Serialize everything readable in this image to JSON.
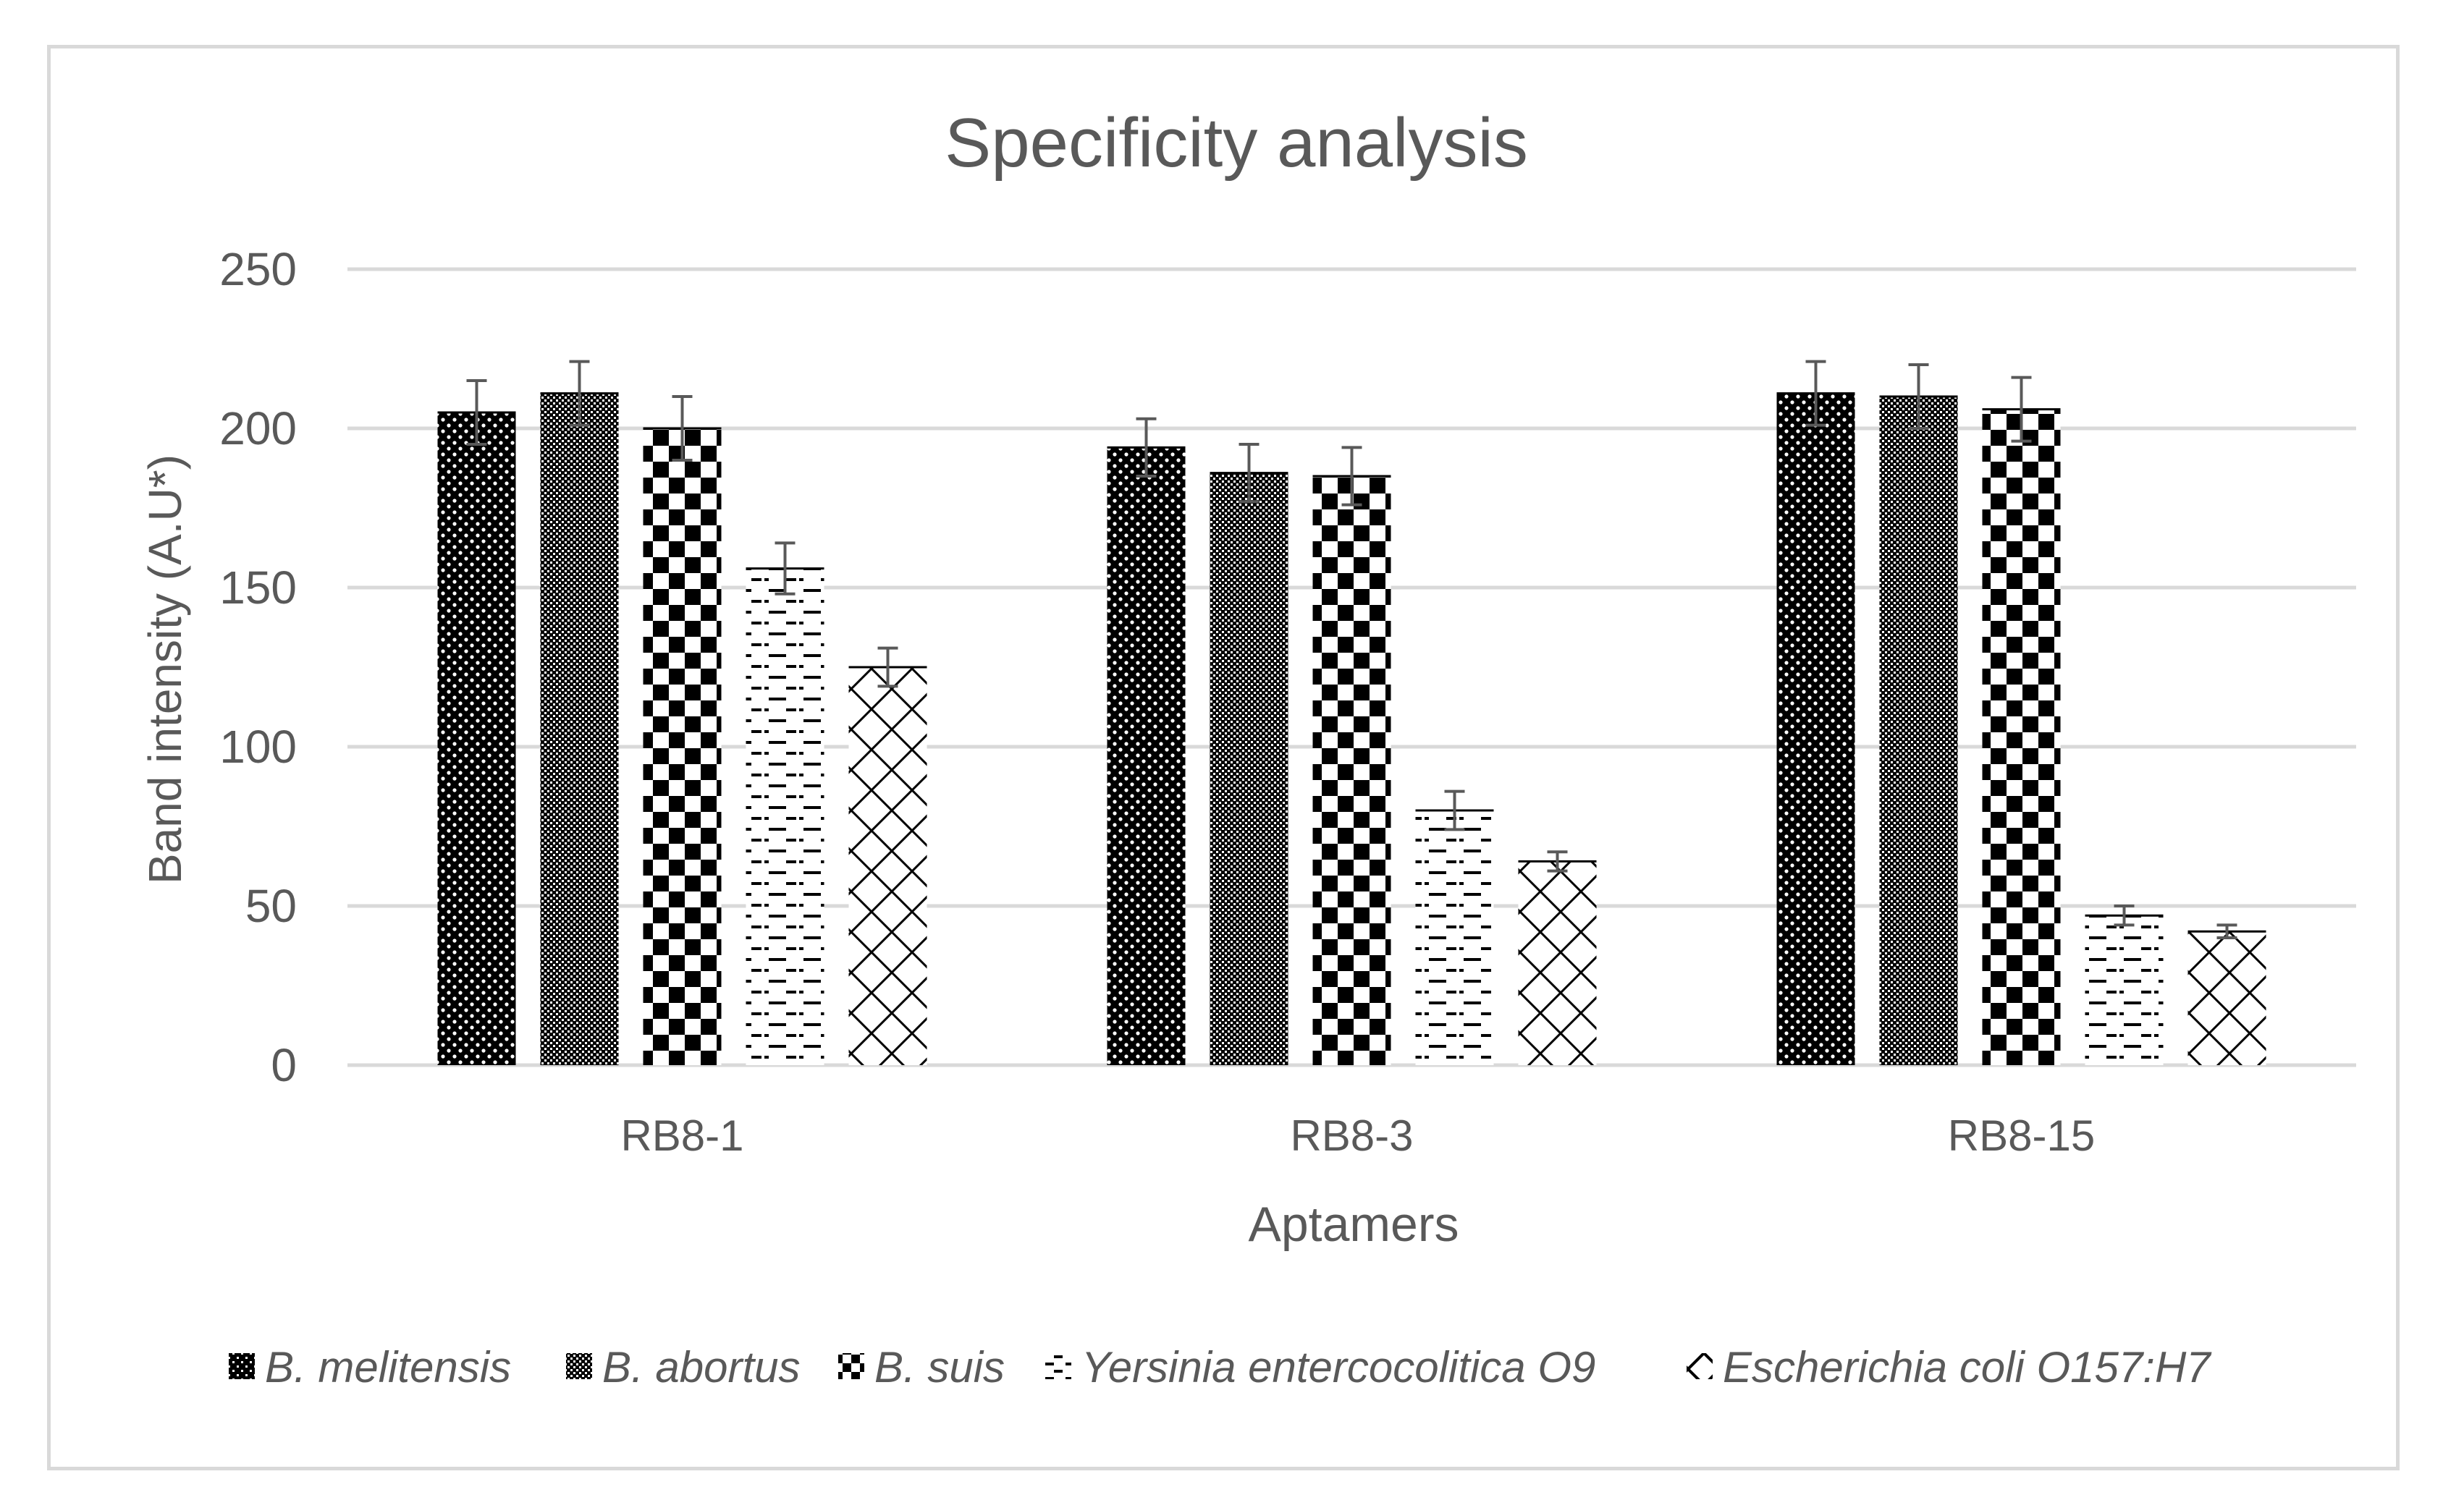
{
  "chart_data": {
    "type": "bar",
    "title": "Specificity analysis",
    "xlabel": "Aptamers",
    "ylabel": "Band intensity (A.U*)",
    "ylim": [
      0,
      250
    ],
    "yticks": [
      0,
      50,
      100,
      150,
      200,
      250
    ],
    "grid": true,
    "legend_position": "bottom",
    "categories": [
      "RB8-1",
      "RB8-3",
      "RB8-15"
    ],
    "series": [
      {
        "name": "B. melitensis",
        "values": [
          205,
          194,
          211
        ],
        "errors": [
          10,
          9,
          10
        ],
        "pattern": "dots"
      },
      {
        "name": "B. abortus",
        "values": [
          211,
          186,
          210
        ],
        "errors": [
          10,
          9,
          10
        ],
        "pattern": "mesh"
      },
      {
        "name": "B. suis",
        "values": [
          200,
          185,
          206
        ],
        "errors": [
          10,
          9,
          10
        ],
        "pattern": "checker"
      },
      {
        "name": "Yersinia entercocolitica O9",
        "values": [
          156,
          80,
          47
        ],
        "errors": [
          8,
          6,
          3
        ],
        "pattern": "dashes"
      },
      {
        "name": "Escherichia coli O157:H7",
        "values": [
          125,
          64,
          42
        ],
        "errors": [
          6,
          3,
          2
        ],
        "pattern": "cross"
      }
    ],
    "colors": {
      "ink": "#000000",
      "text": "#595959",
      "grid": "#d9d9d9",
      "error_bar": "#595959"
    }
  }
}
